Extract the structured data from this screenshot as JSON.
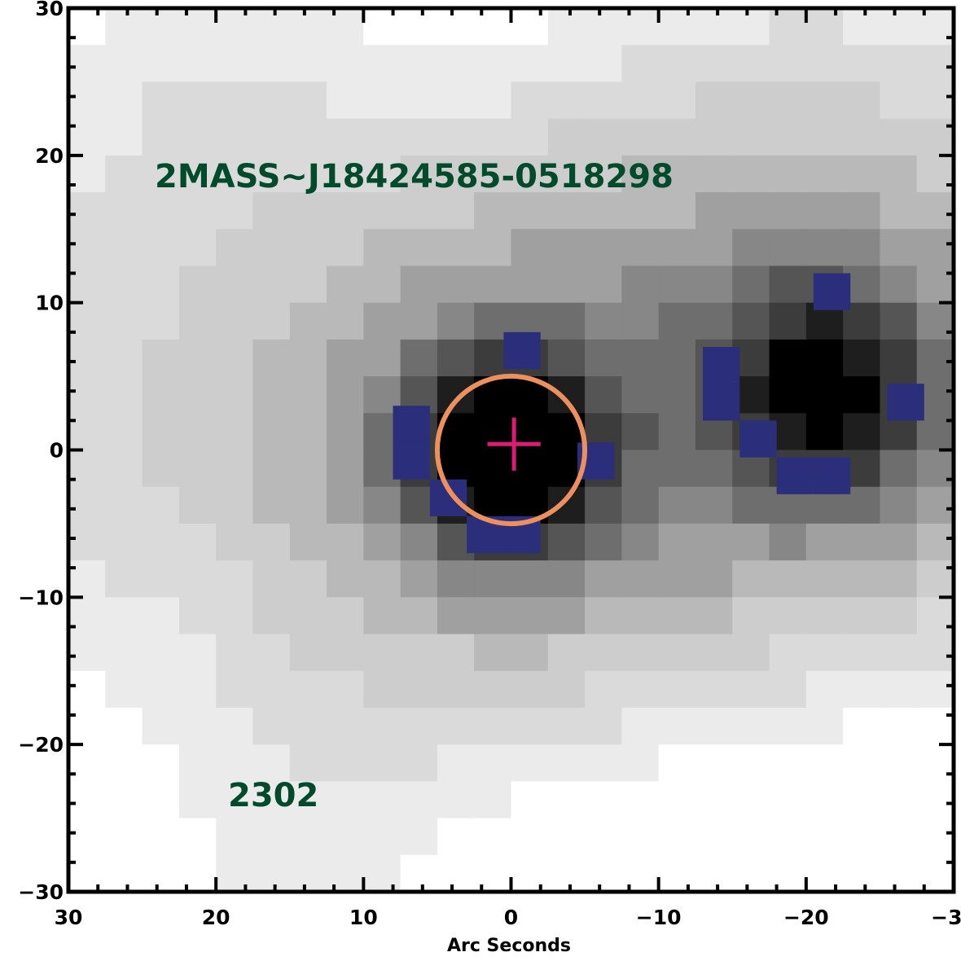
{
  "chart_data": {
    "type": "heatmap",
    "xlabel": "Arc Seconds",
    "ylabel": "",
    "xlim": [
      30,
      -30
    ],
    "ylim": [
      -30,
      30
    ],
    "x_ticks": [
      30,
      20,
      10,
      0,
      -10,
      -20,
      -30
    ],
    "y_ticks": [
      30,
      20,
      10,
      0,
      -10,
      -20,
      -30
    ],
    "x_tick_labels": [
      "30",
      "20",
      "10",
      "0",
      "−10",
      "−20",
      "−30"
    ],
    "y_tick_labels": [
      "30",
      "20",
      "10",
      "0",
      "−10",
      "−20",
      "−30"
    ],
    "annotations": {
      "source_name": "2MASS~J18424585-0518298",
      "id_label": "2302"
    },
    "annotation_color": "#014b2c",
    "sources": [
      {
        "x": 0,
        "y": 0,
        "peak": 1.0
      },
      {
        "x": -21,
        "y": 4,
        "peak": 0.72
      }
    ],
    "aperture": {
      "x": 0,
      "y": 0,
      "radius": 5,
      "color": "#ee8f5e"
    },
    "center_marker": {
      "x": -0.2,
      "y": 0.4,
      "size": 1.8,
      "color": "#dc1b74"
    },
    "contour_color": "#2b2e7a",
    "grid": false
  }
}
